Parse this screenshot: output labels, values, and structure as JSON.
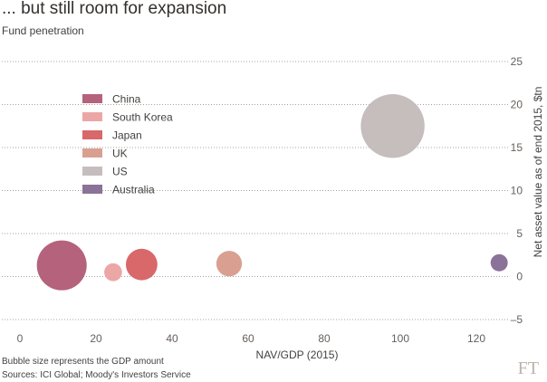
{
  "title": "... but still room for expansion",
  "subtitle": "Fund penetration",
  "footnotes": {
    "bubble_note": "Bubble size represents the GDP amount",
    "sources": "Sources: ICI Global; Moody's Investors Service"
  },
  "logo": "FT",
  "colors": {
    "background": "#ffffff",
    "grid": "#a7a59b"
  },
  "chart_data": {
    "type": "scatter",
    "subtype": "bubble",
    "title": "... but still room for expansion",
    "subtitle": "Fund penetration",
    "xlabel": "NAV/GDP (2015)",
    "ylabel": "Net asset value as of end 2015, $tn",
    "xlim": [
      -5,
      135
    ],
    "ylim": [
      -5,
      25
    ],
    "xticks": [
      0,
      20,
      40,
      60,
      80,
      100,
      120
    ],
    "yticks": [
      -5,
      0,
      5,
      10,
      15,
      20,
      25
    ],
    "grid": "horizontal dotted",
    "legend_position": "top-left",
    "size_encodes": "GDP amount",
    "series": [
      {
        "name": "China",
        "color": "#b5627d",
        "x": 11,
        "y": 1.3,
        "size": 11.0
      },
      {
        "name": "South Korea",
        "color": "#eba7a5",
        "x": 24.5,
        "y": 0.5,
        "size": 1.4
      },
      {
        "name": "Japan",
        "color": "#d8686a",
        "x": 32,
        "y": 1.4,
        "size": 4.4
      },
      {
        "name": "UK",
        "color": "#d9a092",
        "x": 55,
        "y": 1.5,
        "size": 2.9
      },
      {
        "name": "US",
        "color": "#c6bdbd",
        "x": 98,
        "y": 17.5,
        "size": 18.0
      },
      {
        "name": "Australia",
        "color": "#8a7298",
        "x": 126,
        "y": 1.6,
        "size": 1.3
      }
    ]
  }
}
